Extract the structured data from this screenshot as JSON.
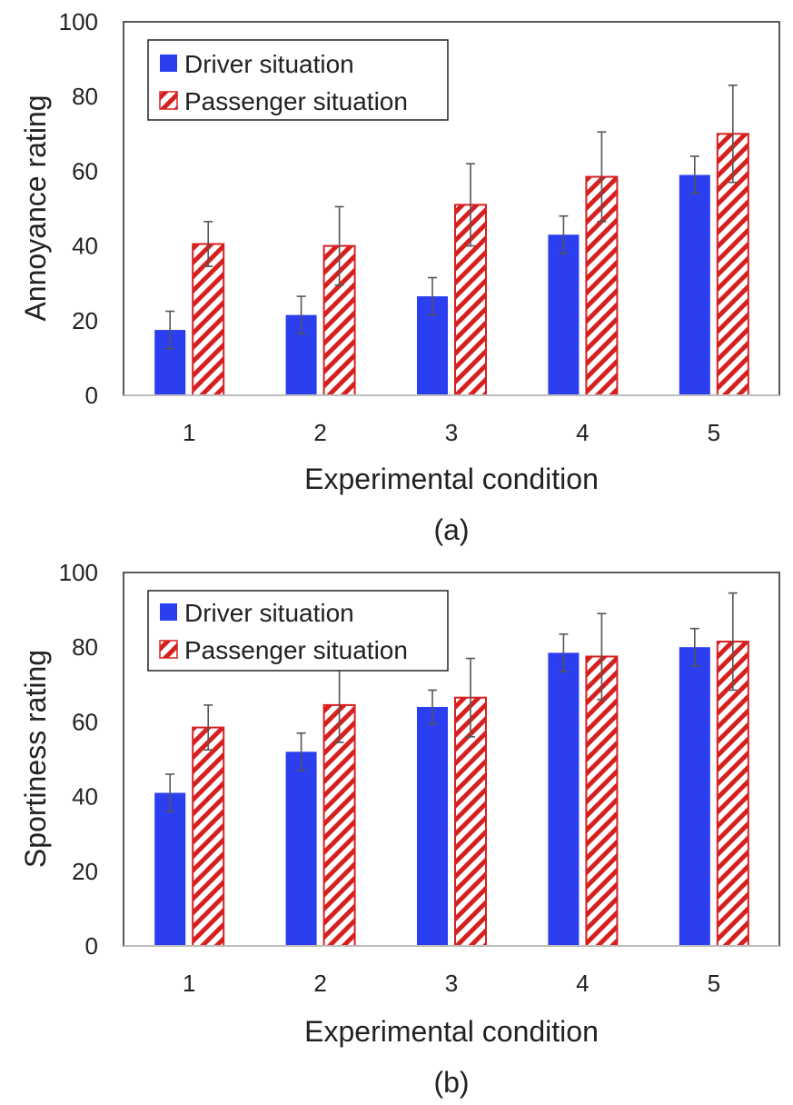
{
  "colors": {
    "driver": "#2b3ef0",
    "passenger_stroke": "#d62020",
    "passenger_fill": "#ffffff",
    "error_bar": "#555555",
    "axis": "#bdbdbd",
    "frame": "#222222"
  },
  "chart_data": [
    {
      "type": "bar",
      "title": "",
      "caption": "(a)",
      "xlabel": "Experimental condition",
      "ylabel": "Annoyance rating",
      "ylim": [
        0,
        100
      ],
      "yticks": [
        0,
        20,
        40,
        60,
        80,
        100
      ],
      "categories": [
        "1",
        "2",
        "3",
        "4",
        "5"
      ],
      "legend_position": "top-left",
      "series": [
        {
          "name": "Driver situation",
          "style": "solid",
          "values": [
            17.5,
            21.5,
            26.5,
            43,
            59
          ],
          "errors": [
            5,
            5,
            5,
            5,
            5
          ]
        },
        {
          "name": "Passenger situation",
          "style": "hatched",
          "values": [
            40.5,
            40,
            51,
            58.5,
            70
          ],
          "errors": [
            6,
            10.5,
            11,
            12,
            13
          ]
        }
      ]
    },
    {
      "type": "bar",
      "title": "",
      "caption": "(b)",
      "xlabel": "Experimental condition",
      "ylabel": "Sportiness rating",
      "ylim": [
        0,
        100
      ],
      "yticks": [
        0,
        20,
        40,
        60,
        80,
        100
      ],
      "categories": [
        "1",
        "2",
        "3",
        "4",
        "5"
      ],
      "legend_position": "top-left",
      "series": [
        {
          "name": "Driver situation",
          "style": "solid",
          "values": [
            41,
            52,
            64,
            78.5,
            80
          ],
          "errors": [
            5,
            5,
            4.5,
            5,
            5
          ]
        },
        {
          "name": "Passenger situation",
          "style": "hatched",
          "values": [
            58.5,
            64.5,
            66.5,
            77.5,
            81.5
          ],
          "errors": [
            6,
            10,
            10.5,
            11.5,
            13
          ]
        }
      ]
    }
  ]
}
